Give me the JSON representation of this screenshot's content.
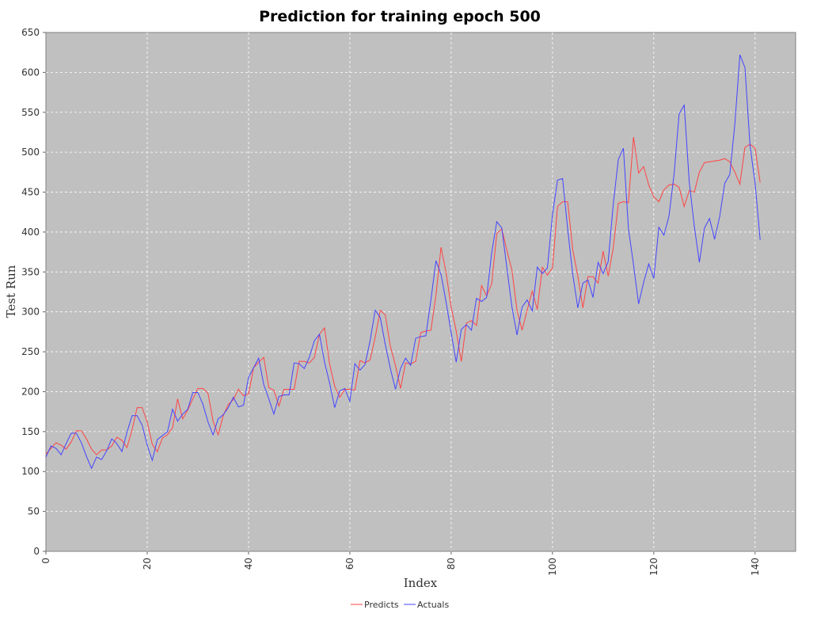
{
  "chart_data": {
    "type": "line",
    "title": "Prediction for training epoch 500",
    "xlabel": "Index",
    "ylabel": "Test Run",
    "xlim": [
      0,
      148
    ],
    "ylim": [
      0,
      650
    ],
    "xticks": [
      0,
      20,
      40,
      60,
      80,
      100,
      120,
      140
    ],
    "yticks": [
      0,
      50,
      100,
      150,
      200,
      250,
      300,
      350,
      400,
      450,
      500,
      550,
      600,
      650
    ],
    "grid": true,
    "legend": "bottom-center",
    "colors": {
      "plot_background": "#c0c0c0",
      "gridline": "#ffffff",
      "Predicts": "#ff4444",
      "Actuals": "#4444ff"
    },
    "series": [
      {
        "name": "Predicts",
        "color": "#ff4444",
        "values": [
          122,
          129,
          136,
          133,
          128,
          137,
          151,
          151,
          141,
          128,
          121,
          127,
          127,
          132,
          143,
          139,
          130,
          152,
          180,
          180,
          162,
          134,
          125,
          142,
          146,
          155,
          191,
          166,
          177,
          191,
          204,
          204,
          198,
          163,
          146,
          170,
          184,
          190,
          203,
          195,
          197,
          230,
          237,
          243,
          205,
          202,
          182,
          203,
          203,
          203,
          238,
          238,
          236,
          243,
          272,
          280,
          235,
          207,
          193,
          203,
          203,
          202,
          239,
          236,
          240,
          268,
          302,
          296,
          257,
          233,
          204,
          236,
          235,
          238,
          274,
          276,
          277,
          321,
          381,
          349,
          306,
          276,
          238,
          286,
          289,
          283,
          333,
          320,
          335,
          398,
          404,
          377,
          352,
          302,
          277,
          302,
          326,
          303,
          356,
          346,
          355,
          432,
          438,
          438,
          378,
          345,
          305,
          344,
          344,
          336,
          376,
          345,
          380,
          436,
          438,
          437,
          519,
          474,
          482,
          459,
          444,
          438,
          453,
          459,
          460,
          456,
          432,
          452,
          450,
          475,
          487,
          488,
          489,
          490,
          492,
          488,
          475,
          460,
          506,
          510,
          505,
          462
        ]
      },
      {
        "name": "Actuals",
        "color": "#4444ff",
        "values": [
          118,
          132,
          129,
          121,
          135,
          148,
          148,
          136,
          119,
          104,
          118,
          115,
          126,
          141,
          135,
          125,
          149,
          170,
          170,
          158,
          133,
          114,
          140,
          145,
          150,
          178,
          163,
          172,
          178,
          199,
          199,
          184,
          162,
          146,
          166,
          171,
          180,
          193,
          181,
          183,
          218,
          230,
          242,
          209,
          191,
          172,
          194,
          196,
          196,
          236,
          235,
          229,
          243,
          264,
          272,
          237,
          211,
          180,
          201,
          204,
          188,
          235,
          227,
          234,
          264,
          302,
          293,
          259,
          229,
          203,
          229,
          242,
          233,
          267,
          269,
          270,
          315,
          364,
          347,
          312,
          274,
          237,
          278,
          284,
          277,
          317,
          313,
          318,
          374,
          413,
          405,
          355,
          306,
          271,
          306,
          315,
          301,
          356,
          348,
          355,
          422,
          465,
          467,
          404,
          347,
          305,
          336,
          340,
          318,
          362,
          348,
          363,
          435,
          491,
          505,
          404,
          359,
          310,
          337,
          360,
          342,
          406,
          396,
          420,
          472,
          548,
          559,
          463,
          407,
          362,
          405,
          417,
          391,
          419,
          461,
          472,
          535,
          622,
          606,
          508,
          461,
          390
        ]
      }
    ]
  }
}
